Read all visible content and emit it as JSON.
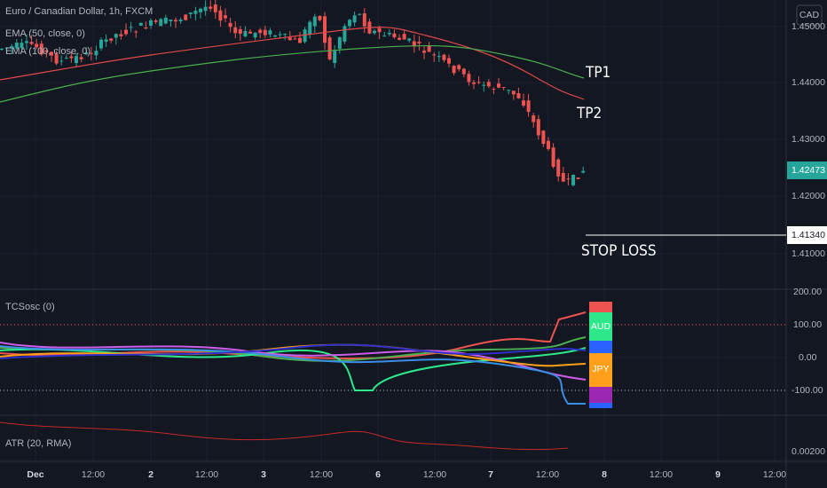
{
  "header": {
    "symbol": "Euro / Canadian Dollar, 1h, FXCM",
    "indicators": [
      "EMA (50, close, 0)",
      "EMA (100, close, 0)"
    ],
    "currency": "CAD"
  },
  "price_axis": {
    "labels": [
      "1.45000",
      "1.44000",
      "1.43000",
      "1.42000",
      "1.41000"
    ],
    "last_price": "1.42473",
    "stop_price": "1.41340"
  },
  "annotations": {
    "tp1": "TP1",
    "tp2": "TP2",
    "stop": "STOP LOSS"
  },
  "oscillator": {
    "title": "TCSosc (0)",
    "labels": [
      "200.00",
      "100.00",
      "0.00",
      "-100.00"
    ],
    "tags": [
      "AUD",
      "JPY"
    ]
  },
  "atr": {
    "title": "ATR (20, RMA)",
    "label": "0.00200"
  },
  "time_axis": [
    "Dec",
    "12:00",
    "2",
    "12:00",
    "3",
    "12:00",
    "6",
    "12:00",
    "7",
    "12:00",
    "8",
    "12:00",
    "9",
    "12:00"
  ]
}
